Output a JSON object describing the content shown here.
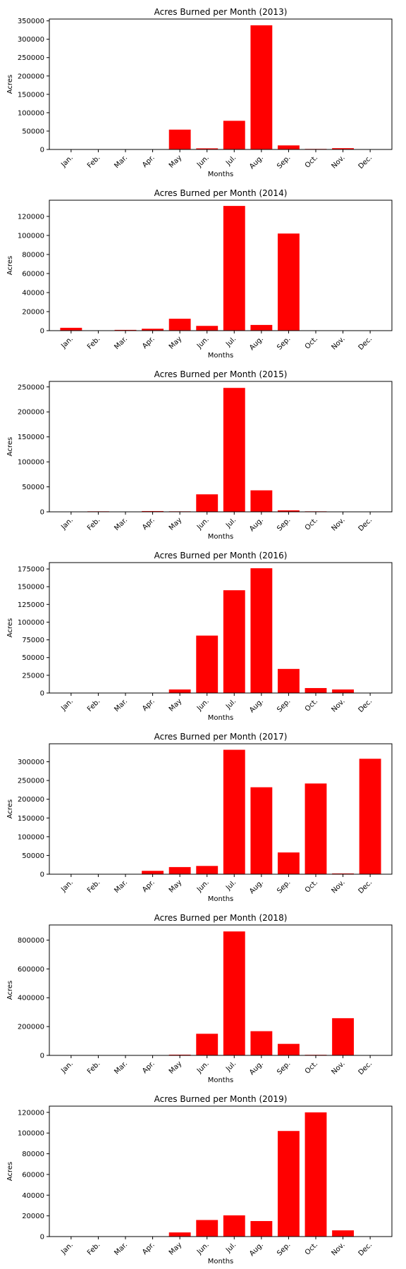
{
  "colors": {
    "bar": "#ff0000",
    "axis": "#000000",
    "background": "#ffffff"
  },
  "chart_data": [
    {
      "type": "bar",
      "title": "Acres Burned per Month (2013)",
      "xlabel": "Months",
      "ylabel": "Acres",
      "categories": [
        "Jan.",
        "Feb.",
        "Mar.",
        "Apr.",
        "May",
        "Jun.",
        "Jul.",
        "Aug.",
        "Sep.",
        "Oct.",
        "Nov.",
        "Dec."
      ],
      "values": [
        0,
        0,
        0,
        0,
        54000,
        3000,
        78000,
        338000,
        11000,
        1500,
        3500,
        0
      ],
      "ylim": [
        0,
        355000
      ],
      "yticks": [
        0,
        50000,
        100000,
        150000,
        200000,
        250000,
        300000,
        350000
      ],
      "grid": false,
      "legend": "none"
    },
    {
      "type": "bar",
      "title": "Acres Burned per Month (2014)",
      "xlabel": "Months",
      "ylabel": "Acres",
      "categories": [
        "Jan.",
        "Feb.",
        "Mar.",
        "Apr.",
        "May",
        "Jun.",
        "Jul.",
        "Aug.",
        "Sep.",
        "Oct.",
        "Nov.",
        "Dec."
      ],
      "values": [
        3000,
        0,
        800,
        2000,
        12500,
        5000,
        131000,
        6000,
        102000,
        0,
        0,
        0
      ],
      "ylim": [
        0,
        137000
      ],
      "yticks": [
        0,
        20000,
        40000,
        60000,
        80000,
        100000,
        120000
      ],
      "grid": false,
      "legend": "none"
    },
    {
      "type": "bar",
      "title": "Acres Burned per Month (2015)",
      "xlabel": "Months",
      "ylabel": "Acres",
      "categories": [
        "Jan.",
        "Feb.",
        "Mar.",
        "Apr.",
        "May",
        "Jun.",
        "Jul.",
        "Aug.",
        "Sep.",
        "Oct.",
        "Nov.",
        "Dec."
      ],
      "values": [
        0,
        1000,
        0,
        1500,
        1000,
        35000,
        248000,
        43000,
        3000,
        1000,
        0,
        0
      ],
      "ylim": [
        0,
        261000
      ],
      "yticks": [
        0,
        50000,
        100000,
        150000,
        200000,
        250000
      ],
      "grid": false,
      "legend": "none"
    },
    {
      "type": "bar",
      "title": "Acres Burned per Month (2016)",
      "xlabel": "Months",
      "ylabel": "Acres",
      "categories": [
        "Jan.",
        "Feb.",
        "Mar.",
        "Apr.",
        "May",
        "Jun.",
        "Jul.",
        "Aug.",
        "Sep.",
        "Oct.",
        "Nov.",
        "Dec."
      ],
      "values": [
        0,
        0,
        0,
        0,
        5000,
        81000,
        145000,
        176000,
        34000,
        7000,
        5000,
        0
      ],
      "ylim": [
        0,
        184000
      ],
      "yticks": [
        0,
        25000,
        50000,
        75000,
        100000,
        125000,
        150000,
        175000
      ],
      "grid": false,
      "legend": "none"
    },
    {
      "type": "bar",
      "title": "Acres Burned per Month (2017)",
      "xlabel": "Months",
      "ylabel": "Acres",
      "categories": [
        "Jan.",
        "Feb.",
        "Mar.",
        "Apr.",
        "May",
        "Jun.",
        "Jul.",
        "Aug.",
        "Sep.",
        "Oct.",
        "Nov.",
        "Dec."
      ],
      "values": [
        0,
        0,
        0,
        9000,
        19000,
        22000,
        332000,
        232000,
        58000,
        242000,
        2000,
        308000
      ],
      "ylim": [
        0,
        348000
      ],
      "yticks": [
        0,
        50000,
        100000,
        150000,
        200000,
        250000,
        300000
      ],
      "grid": false,
      "legend": "none"
    },
    {
      "type": "bar",
      "title": "Acres Burned per Month (2018)",
      "xlabel": "Months",
      "ylabel": "Acres",
      "categories": [
        "Jan.",
        "Feb.",
        "Mar.",
        "Apr.",
        "May",
        "Jun.",
        "Jul.",
        "Aug.",
        "Sep.",
        "Oct.",
        "Nov.",
        "Dec."
      ],
      "values": [
        0,
        0,
        0,
        0,
        5000,
        150000,
        860000,
        168000,
        80000,
        4000,
        258000,
        0
      ],
      "ylim": [
        0,
        905000
      ],
      "yticks": [
        0,
        200000,
        400000,
        600000,
        800000
      ],
      "grid": false,
      "legend": "none"
    },
    {
      "type": "bar",
      "title": "Acres Burned per Month (2019)",
      "xlabel": "Months",
      "ylabel": "Acres",
      "categories": [
        "Jan.",
        "Feb.",
        "Mar.",
        "Apr.",
        "May",
        "Jun.",
        "Jul.",
        "Aug.",
        "Sep.",
        "Oct.",
        "Nov.",
        "Dec."
      ],
      "values": [
        0,
        0,
        0,
        0,
        4000,
        16000,
        20500,
        15000,
        102000,
        120000,
        6000,
        0
      ],
      "ylim": [
        0,
        126000
      ],
      "yticks": [
        0,
        20000,
        40000,
        60000,
        80000,
        100000,
        120000
      ],
      "grid": false,
      "legend": "none"
    }
  ]
}
